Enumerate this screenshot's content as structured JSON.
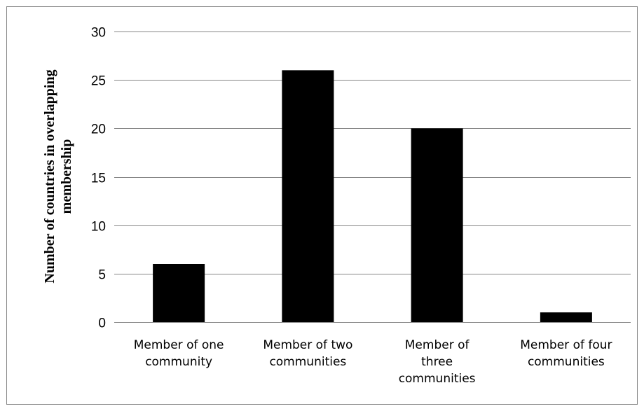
{
  "chart_data": {
    "type": "bar",
    "title": "",
    "xlabel": "",
    "ylabel": [
      "Number of countries in overlapping",
      "membership"
    ],
    "categories": [
      [
        "Member of one",
        "community"
      ],
      [
        "Member of two",
        "communities"
      ],
      [
        "Member of",
        "three",
        "communities"
      ],
      [
        "Member of four",
        "communities"
      ]
    ],
    "values": [
      6,
      26,
      20,
      1
    ],
    "ylim": [
      0,
      30
    ],
    "yticks": [
      0,
      5,
      10,
      15,
      20,
      25,
      30
    ],
    "grid": true,
    "bar_color": "#000000",
    "grid_color": "#868686"
  }
}
